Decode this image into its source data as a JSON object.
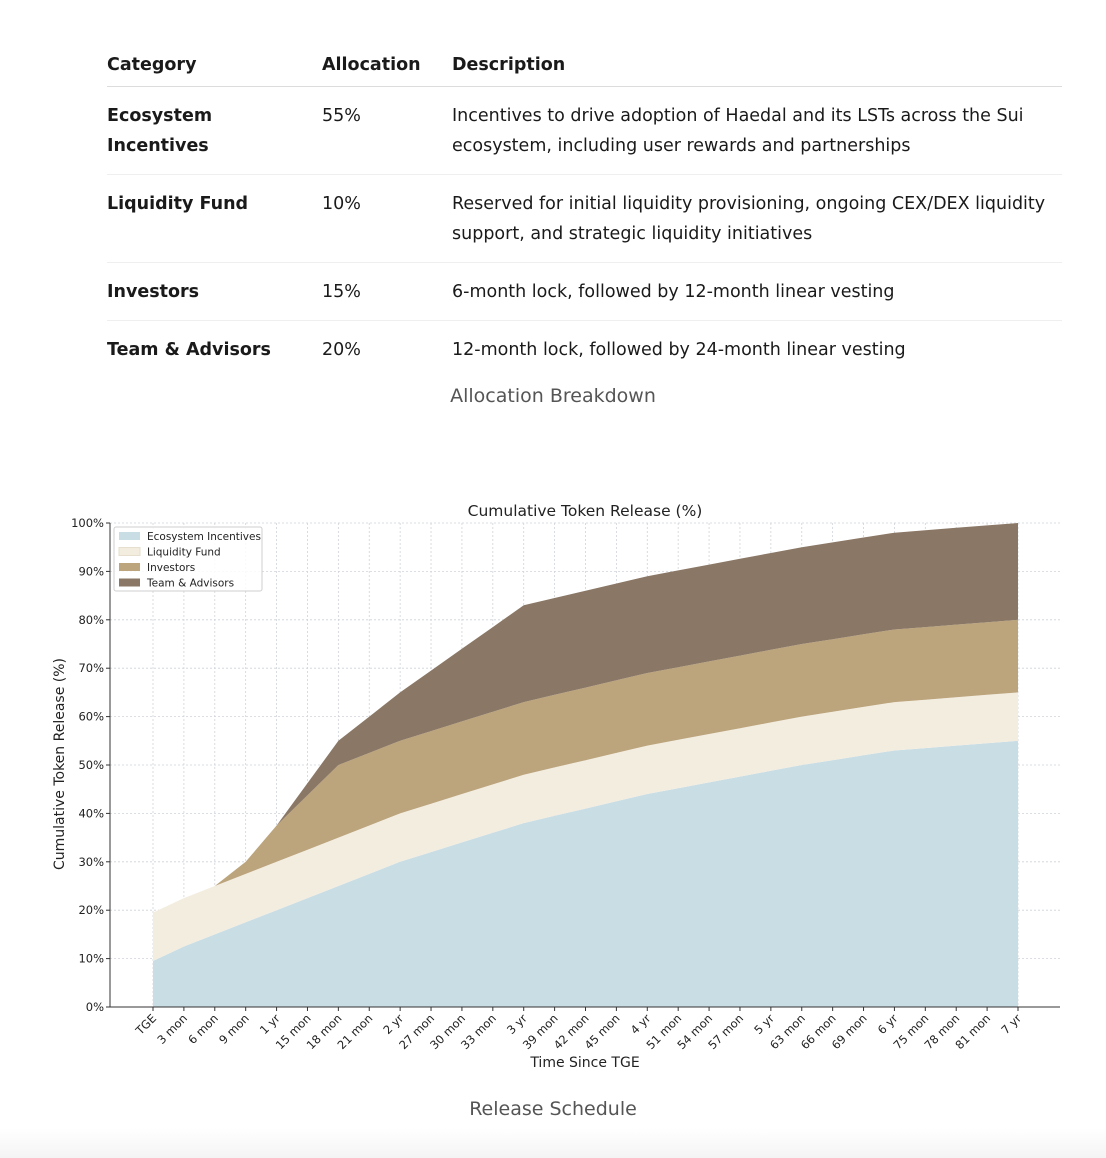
{
  "table": {
    "headers": [
      "Category",
      "Allocation",
      "Description"
    ],
    "rows": [
      {
        "category": "Ecosystem Incentives",
        "allocation": "55%",
        "description": "Incentives to drive adoption of Haedal and its LSTs across the Sui ecosystem, including user rewards and partnerships"
      },
      {
        "category": "Liquidity Fund",
        "allocation": "10%",
        "description": "Reserved for initial liquidity provisioning, ongoing CEX/DEX liquidity support, and strategic liquidity initiatives"
      },
      {
        "category": "Investors",
        "allocation": "15%",
        "description": "6-month lock, followed by 12-month linear vesting"
      },
      {
        "category": "Team & Advisors",
        "allocation": "20%",
        "description": "12-month lock, followed by 24-month linear vesting"
      }
    ]
  },
  "captions": {
    "table": "Allocation Breakdown",
    "chart": "Release Schedule"
  },
  "chart_data": {
    "type": "area",
    "stacked": true,
    "title": "Cumulative Token Release (%)",
    "xlabel": "Time Since TGE",
    "ylabel": "Cumulative Token Release (%)",
    "categories": [
      "TGE",
      "3 mon",
      "6 mon",
      "9 mon",
      "1 yr",
      "15 mon",
      "18 mon",
      "21 mon",
      "2 yr",
      "27 mon",
      "30 mon",
      "33 mon",
      "3 yr",
      "39 mon",
      "42 mon",
      "45 mon",
      "4 yr",
      "51 mon",
      "54 mon",
      "57 mon",
      "5 yr",
      "63 mon",
      "66 mon",
      "69 mon",
      "6 yr",
      "75 mon",
      "78 mon",
      "81 mon",
      "7 yr"
    ],
    "ylim": [
      0,
      100
    ],
    "yticks": [
      "0%",
      "10%",
      "20%",
      "30%",
      "40%",
      "50%",
      "60%",
      "70%",
      "80%",
      "90%",
      "100%"
    ],
    "grid": true,
    "legend_position": "top-left",
    "series": [
      {
        "name": "Ecosystem Incentives",
        "color": "#c9dde5",
        "values": [
          9.5,
          12.5,
          15.0,
          17.5,
          20.0,
          22.5,
          25.0,
          27.5,
          30.0,
          32.0,
          34.0,
          36.0,
          38.0,
          39.5,
          41.0,
          42.5,
          44.0,
          45.2,
          46.4,
          47.6,
          48.8,
          50.0,
          51.0,
          52.0,
          53.0,
          53.5,
          54.0,
          54.5,
          55.0
        ]
      },
      {
        "name": "Liquidity Fund",
        "color": "#f3ede0",
        "values": [
          10.0,
          10.0,
          10.0,
          10.0,
          10.0,
          10.0,
          10.0,
          10.0,
          10.0,
          10.0,
          10.0,
          10.0,
          10.0,
          10.0,
          10.0,
          10.0,
          10.0,
          10.0,
          10.0,
          10.0,
          10.0,
          10.0,
          10.0,
          10.0,
          10.0,
          10.0,
          10.0,
          10.0,
          10.0
        ]
      },
      {
        "name": "Investors",
        "color": "#bca47c",
        "values": [
          0,
          0,
          0,
          2.5,
          7.5,
          11.25,
          15.0,
          15.0,
          15.0,
          15.0,
          15.0,
          15.0,
          15.0,
          15.0,
          15.0,
          15.0,
          15.0,
          15.0,
          15.0,
          15.0,
          15.0,
          15.0,
          15.0,
          15.0,
          15.0,
          15.0,
          15.0,
          15.0,
          15.0
        ]
      },
      {
        "name": "Team & Advisors",
        "color": "#8a7765",
        "values": [
          0,
          0,
          0,
          0,
          0,
          2.5,
          5.0,
          7.5,
          10.0,
          12.5,
          15.0,
          17.5,
          20.0,
          20.0,
          20.0,
          20.0,
          20.0,
          20.0,
          20.0,
          20.0,
          20.0,
          20.0,
          20.0,
          20.0,
          20.0,
          20.0,
          20.0,
          20.0,
          20.0
        ]
      }
    ]
  }
}
